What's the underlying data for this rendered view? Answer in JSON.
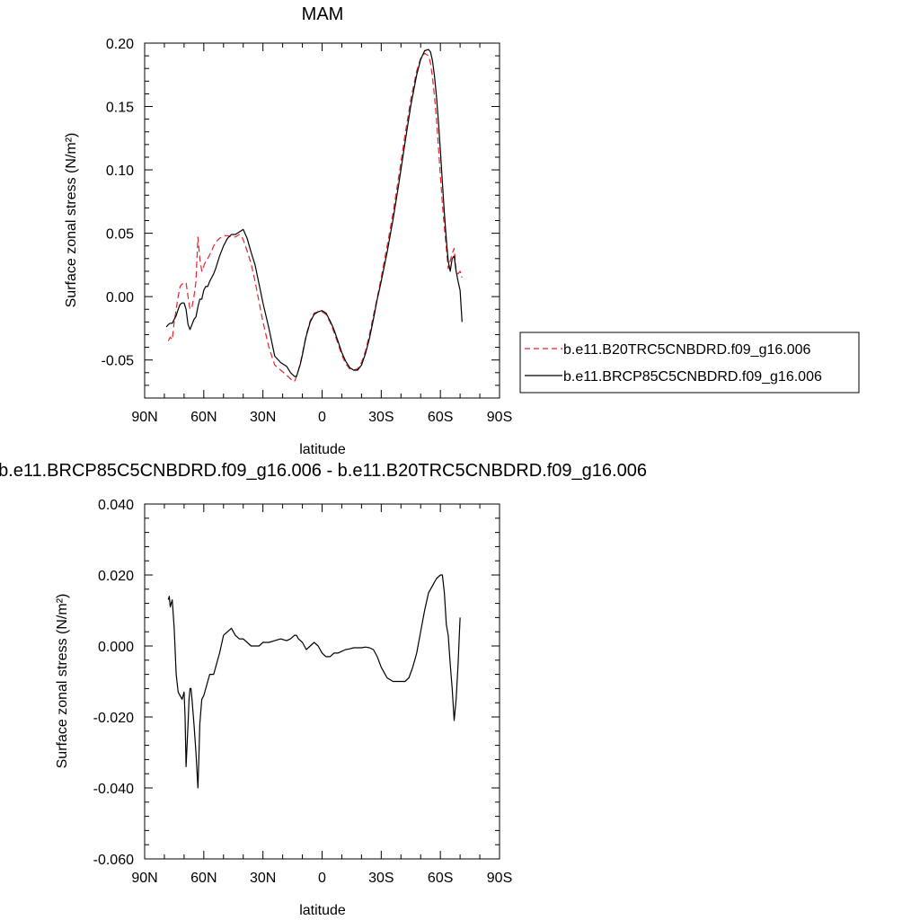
{
  "chart_data": [
    {
      "type": "line",
      "title": "MAM",
      "xlabel": "latitude",
      "ylabel": "Surface zonal stress (N/m²)",
      "xlim": [
        90,
        -90
      ],
      "ylim": [
        -0.08,
        0.2
      ],
      "xticks": [
        90,
        60,
        30,
        0,
        -30,
        -60,
        -90
      ],
      "xticklabels": [
        "90N",
        "60N",
        "30N",
        "0",
        "30S",
        "60S",
        "90S"
      ],
      "yticks": [
        -0.05,
        0.0,
        0.05,
        0.1,
        0.15,
        0.2
      ],
      "yticklabels": [
        "-0.05",
        "0.00",
        "0.05",
        "0.10",
        "0.15",
        "0.20"
      ],
      "legend": "right",
      "series": [
        {
          "name": "b.e11.B20TRC5CNBDRD.f09_g16.006",
          "color": "#e8232a",
          "dash": "dashed",
          "x": [
            78,
            77,
            76,
            75,
            74,
            73,
            72,
            71,
            70,
            69,
            68,
            67,
            66,
            65,
            64,
            63,
            62,
            61,
            60,
            59,
            58,
            57,
            56,
            55,
            54,
            52,
            50,
            48,
            46,
            44,
            42,
            41,
            40,
            38,
            36,
            34,
            32,
            30,
            27,
            24,
            21,
            18,
            16,
            14,
            13,
            12,
            11,
            10,
            9,
            8,
            6,
            4,
            2,
            0,
            -2,
            -4,
            -6,
            -8,
            -10,
            -12,
            -14,
            -16,
            -18,
            -20,
            -22,
            -24,
            -26,
            -28,
            -30,
            -33,
            -36,
            -39,
            -42,
            -45,
            -48,
            -50,
            -52,
            -54,
            -55,
            -56,
            -57,
            -58,
            -59,
            -60,
            -61,
            -62,
            -63,
            -64,
            -65,
            -66,
            -67,
            -68,
            -69,
            -70,
            -71
          ],
          "y": [
            -0.035,
            -0.032,
            -0.034,
            -0.02,
            -0.01,
            0.0,
            0.008,
            0.01,
            0.01,
            0.011,
            0.0,
            -0.01,
            -0.008,
            0.0,
            0.012,
            0.047,
            0.03,
            0.02,
            0.024,
            0.028,
            0.03,
            0.033,
            0.036,
            0.04,
            0.043,
            0.046,
            0.048,
            0.048,
            0.047,
            0.047,
            0.049,
            0.048,
            0.045,
            0.036,
            0.026,
            0.012,
            -0.004,
            -0.02,
            -0.04,
            -0.054,
            -0.058,
            -0.062,
            -0.065,
            -0.067,
            -0.063,
            -0.058,
            -0.052,
            -0.045,
            -0.037,
            -0.03,
            -0.019,
            -0.013,
            -0.012,
            -0.012,
            -0.014,
            -0.02,
            -0.028,
            -0.037,
            -0.046,
            -0.053,
            -0.057,
            -0.058,
            -0.057,
            -0.052,
            -0.043,
            -0.03,
            -0.015,
            -0.001,
            0.015,
            0.04,
            0.066,
            0.096,
            0.127,
            0.156,
            0.178,
            0.188,
            0.192,
            0.19,
            0.184,
            0.173,
            0.158,
            0.14,
            0.118,
            0.095,
            0.073,
            0.055,
            0.038,
            0.022,
            0.028,
            0.034,
            0.038,
            0.02,
            0.018,
            0.02,
            0.015
          ]
        },
        {
          "name": "b.e11.BRCP85C5CNBDRD.f09_g16.006",
          "color": "#000000",
          "dash": "solid",
          "x": [
            79,
            78,
            77,
            76,
            75,
            74,
            73,
            72,
            71,
            70,
            69,
            68,
            67,
            66,
            65,
            64,
            63,
            62,
            61,
            60,
            59,
            58,
            57,
            56,
            55,
            54,
            52,
            50,
            48,
            46,
            44,
            42,
            41,
            40,
            38,
            36,
            34,
            32,
            30,
            27,
            24,
            21,
            18,
            16,
            14,
            13,
            12,
            11,
            10,
            9,
            8,
            6,
            4,
            2,
            0,
            -2,
            -4,
            -6,
            -8,
            -10,
            -12,
            -14,
            -16,
            -18,
            -20,
            -22,
            -24,
            -26,
            -28,
            -30,
            -33,
            -36,
            -39,
            -42,
            -45,
            -48,
            -50,
            -52,
            -54,
            -55,
            -56,
            -57,
            -58,
            -59,
            -60,
            -61,
            -62,
            -63,
            -64,
            -65,
            -66,
            -67,
            -68,
            -69,
            -70,
            -71
          ],
          "y": [
            -0.024,
            -0.022,
            -0.021,
            -0.021,
            -0.018,
            -0.015,
            -0.01,
            -0.006,
            -0.005,
            -0.005,
            -0.01,
            -0.022,
            -0.026,
            -0.022,
            -0.018,
            -0.016,
            -0.008,
            -0.002,
            -0.002,
            0.005,
            0.008,
            0.008,
            0.012,
            0.015,
            0.018,
            0.022,
            0.032,
            0.04,
            0.046,
            0.049,
            0.049,
            0.051,
            0.052,
            0.053,
            0.046,
            0.035,
            0.025,
            0.01,
            -0.005,
            -0.025,
            -0.047,
            -0.052,
            -0.055,
            -0.06,
            -0.063,
            -0.063,
            -0.058,
            -0.053,
            -0.046,
            -0.038,
            -0.031,
            -0.02,
            -0.014,
            -0.012,
            -0.011,
            -0.013,
            -0.019,
            -0.026,
            -0.035,
            -0.044,
            -0.051,
            -0.056,
            -0.058,
            -0.058,
            -0.054,
            -0.045,
            -0.033,
            -0.018,
            -0.002,
            0.012,
            0.035,
            0.061,
            0.09,
            0.121,
            0.151,
            0.175,
            0.187,
            0.194,
            0.195,
            0.193,
            0.186,
            0.174,
            0.158,
            0.138,
            0.115,
            0.09,
            0.066,
            0.045,
            0.028,
            0.02,
            0.03,
            0.032,
            0.02,
            0.012,
            0.005,
            -0.02
          ]
        }
      ]
    },
    {
      "type": "line",
      "title": "b.e11.BRCP85C5CNBDRD.f09_g16.006 - b.e11.B20TRC5CNBDRD.f09_g16.006",
      "xlabel": "latitude",
      "ylabel": "Surface zonal stress (N/m²)",
      "xlim": [
        90,
        -90
      ],
      "ylim": [
        -0.06,
        0.04
      ],
      "xticks": [
        90,
        60,
        30,
        0,
        -30,
        -60,
        -90
      ],
      "xticklabels": [
        "90N",
        "60N",
        "30N",
        "0",
        "30S",
        "60S",
        "90S"
      ],
      "yticks": [
        -0.06,
        -0.04,
        -0.02,
        0.0,
        0.02,
        0.04
      ],
      "yticklabels": [
        "-0.060",
        "-0.040",
        "-0.020",
        "0.000",
        "0.020",
        "0.040"
      ],
      "series": [
        {
          "name": "",
          "color": "#000000",
          "dash": "solid",
          "x": [
            78,
            77.5,
            77,
            76.5,
            76,
            75,
            74,
            73,
            72,
            71,
            70,
            69.5,
            69,
            68,
            67.5,
            67,
            66.5,
            66,
            65,
            64,
            63.5,
            63,
            62.5,
            62,
            61,
            60,
            59,
            58,
            57,
            56,
            55,
            54,
            52,
            50,
            48,
            46,
            44,
            42,
            41,
            40,
            38,
            36,
            34,
            32,
            30,
            27,
            24,
            21,
            18,
            16,
            14,
            13,
            12,
            10,
            8,
            6,
            4,
            2,
            0,
            -2,
            -4,
            -6,
            -8,
            -10,
            -12,
            -14,
            -16,
            -18,
            -20,
            -22,
            -24,
            -26,
            -28,
            -30,
            -33,
            -36,
            -39,
            -42,
            -44,
            -46,
            -48,
            -50,
            -52,
            -54,
            -56,
            -58,
            -60,
            -61,
            -62,
            -63,
            -64,
            -65,
            -66,
            -67,
            -68,
            -69,
            -70
          ],
          "y": [
            0.013,
            0.014,
            0.011,
            0.012,
            0.013,
            0.005,
            -0.008,
            -0.013,
            -0.014,
            -0.015,
            -0.013,
            -0.02,
            -0.034,
            -0.022,
            -0.015,
            -0.012,
            -0.012,
            -0.015,
            -0.022,
            -0.03,
            -0.035,
            -0.04,
            -0.032,
            -0.022,
            -0.015,
            -0.014,
            -0.012,
            -0.01,
            -0.008,
            -0.008,
            -0.008,
            -0.006,
            -0.002,
            0.003,
            0.004,
            0.005,
            0.003,
            0.002,
            0.002,
            0.002,
            0.001,
            0.0,
            0.0,
            0.0,
            0.001,
            0.001,
            0.0015,
            0.002,
            0.0015,
            0.002,
            0.003,
            0.003,
            0.002,
            0.001,
            -0.001,
            0.0,
            0.001,
            0.0,
            -0.002,
            -0.003,
            -0.003,
            -0.002,
            -0.002,
            -0.0015,
            -0.001,
            -0.0008,
            -0.0005,
            -0.0005,
            -0.0005,
            -0.0003,
            -0.0005,
            -0.001,
            -0.003,
            -0.006,
            -0.009,
            -0.01,
            -0.01,
            -0.01,
            -0.009,
            -0.006,
            -0.002,
            0.004,
            0.01,
            0.015,
            0.017,
            0.019,
            0.02,
            0.02,
            0.015,
            0.006,
            0.003,
            -0.005,
            -0.012,
            -0.021,
            -0.015,
            -0.005,
            0.008
          ]
        }
      ]
    }
  ]
}
